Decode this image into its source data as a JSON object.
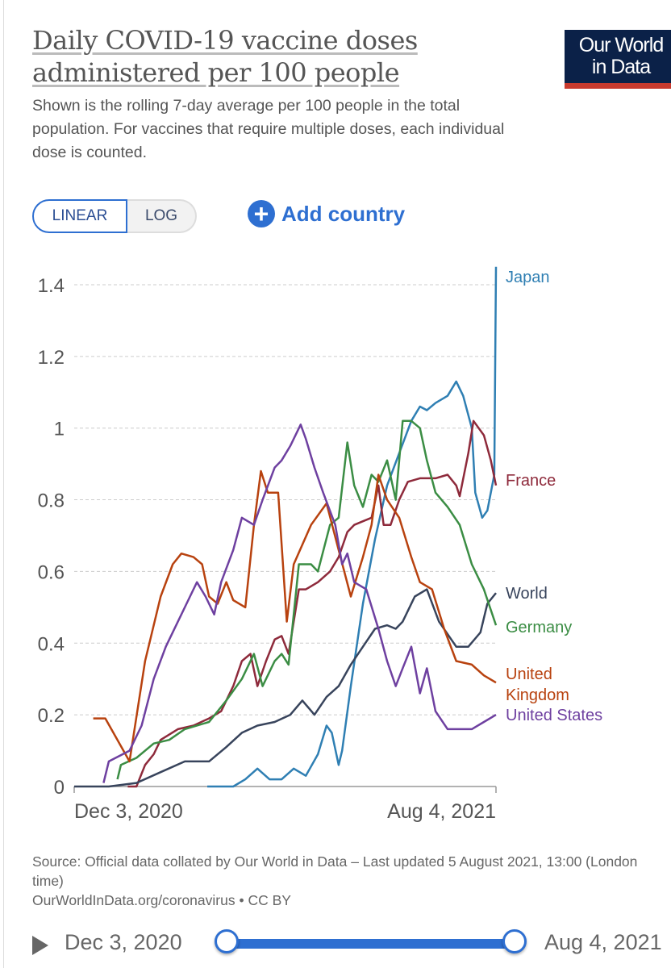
{
  "header": {
    "title": "Daily COVID-19 vaccine doses administered per 100 people",
    "subtitle": "Shown is the rolling 7-day average per 100 people in the total population. For vaccines that require multiple doses, each individual dose is counted.",
    "logo_line1": "Our World",
    "logo_line2": "in Data"
  },
  "controls": {
    "linear_label": "LINEAR",
    "log_label": "LOG",
    "add_country_label": "Add country",
    "add_icon": "plus-circle-icon"
  },
  "chart_data": {
    "type": "line",
    "title": "Daily COVID-19 vaccine doses administered per 100 people",
    "xlabel": "",
    "ylabel": "",
    "x_unit": "days since Dec 3, 2020",
    "xlim": [
      0,
      244
    ],
    "ylim": [
      0,
      1.45
    ],
    "y_ticks": [
      0,
      0.2,
      0.4,
      0.6,
      0.8,
      1,
      1.2,
      1.4
    ],
    "y_tick_labels": [
      "0",
      "0.2",
      "0.4",
      "0.6",
      "0.8",
      "1",
      "1.2",
      "1.4"
    ],
    "x_tick_labels": [
      "Dec 3, 2020",
      "Aug 4, 2021"
    ],
    "grid": true,
    "legend": "right (inline labels)",
    "series": [
      {
        "name": "Japan",
        "label": "Japan",
        "color": "#2f7fb3",
        "points": [
          [
            77,
            0
          ],
          [
            92,
            0
          ],
          [
            99,
            0.02
          ],
          [
            106,
            0.05
          ],
          [
            113,
            0.02
          ],
          [
            120,
            0.02
          ],
          [
            127,
            0.05
          ],
          [
            134,
            0.03
          ],
          [
            141,
            0.09
          ],
          [
            146,
            0.17
          ],
          [
            149,
            0.15
          ],
          [
            153,
            0.06
          ],
          [
            155,
            0.1
          ],
          [
            160,
            0.28
          ],
          [
            167,
            0.51
          ],
          [
            174,
            0.69
          ],
          [
            181,
            0.84
          ],
          [
            188,
            0.93
          ],
          [
            195,
            1.02
          ],
          [
            200,
            1.06
          ],
          [
            204,
            1.05
          ],
          [
            209,
            1.07
          ],
          [
            216,
            1.09
          ],
          [
            221,
            1.13
          ],
          [
            225,
            1.09
          ],
          [
            230,
            1.0
          ],
          [
            232,
            0.82
          ],
          [
            236,
            0.75
          ],
          [
            239,
            0.77
          ],
          [
            243,
            0.87
          ],
          [
            244,
            1.45
          ]
        ]
      },
      {
        "name": "France",
        "label": "France",
        "color": "#8e2a3b",
        "points": [
          [
            31,
            0
          ],
          [
            36,
            0
          ],
          [
            41,
            0.06
          ],
          [
            46,
            0.09
          ],
          [
            50,
            0.13
          ],
          [
            60,
            0.16
          ],
          [
            69,
            0.17
          ],
          [
            78,
            0.19
          ],
          [
            85,
            0.21
          ],
          [
            92,
            0.28
          ],
          [
            97,
            0.35
          ],
          [
            102,
            0.37
          ],
          [
            106,
            0.28
          ],
          [
            111,
            0.35
          ],
          [
            116,
            0.41
          ],
          [
            120,
            0.42
          ],
          [
            124,
            0.37
          ],
          [
            130,
            0.55
          ],
          [
            134,
            0.55
          ],
          [
            141,
            0.57
          ],
          [
            148,
            0.6
          ],
          [
            153,
            0.64
          ],
          [
            158,
            0.71
          ],
          [
            162,
            0.73
          ],
          [
            167,
            0.74
          ],
          [
            172,
            0.75
          ],
          [
            176,
            0.84
          ],
          [
            179,
            0.73
          ],
          [
            183,
            0.73
          ],
          [
            188,
            0.8
          ],
          [
            193,
            0.85
          ],
          [
            200,
            0.86
          ],
          [
            209,
            0.86
          ],
          [
            216,
            0.87
          ],
          [
            221,
            0.84
          ],
          [
            223,
            0.81
          ],
          [
            228,
            0.93
          ],
          [
            231,
            1.02
          ],
          [
            237,
            0.98
          ],
          [
            241,
            0.91
          ],
          [
            244,
            0.84
          ]
        ]
      },
      {
        "name": "World",
        "label": "World",
        "color": "#38445c",
        "points": [
          [
            0,
            0
          ],
          [
            20,
            0
          ],
          [
            36,
            0.01
          ],
          [
            50,
            0.04
          ],
          [
            64,
            0.07
          ],
          [
            78,
            0.07
          ],
          [
            88,
            0.11
          ],
          [
            97,
            0.15
          ],
          [
            106,
            0.17
          ],
          [
            116,
            0.18
          ],
          [
            125,
            0.2
          ],
          [
            132,
            0.24
          ],
          [
            139,
            0.2
          ],
          [
            146,
            0.25
          ],
          [
            153,
            0.28
          ],
          [
            160,
            0.34
          ],
          [
            167,
            0.39
          ],
          [
            174,
            0.44
          ],
          [
            181,
            0.45
          ],
          [
            186,
            0.44
          ],
          [
            190,
            0.46
          ],
          [
            197,
            0.53
          ],
          [
            204,
            0.55
          ],
          [
            211,
            0.46
          ],
          [
            221,
            0.39
          ],
          [
            228,
            0.39
          ],
          [
            235,
            0.43
          ],
          [
            239,
            0.51
          ],
          [
            244,
            0.54
          ]
        ]
      },
      {
        "name": "Germany",
        "label": "Germany",
        "color": "#3b8d44",
        "points": [
          [
            25,
            0.02
          ],
          [
            27,
            0.06
          ],
          [
            36,
            0.08
          ],
          [
            46,
            0.12
          ],
          [
            55,
            0.13
          ],
          [
            64,
            0.16
          ],
          [
            78,
            0.18
          ],
          [
            88,
            0.24
          ],
          [
            97,
            0.3
          ],
          [
            104,
            0.37
          ],
          [
            109,
            0.28
          ],
          [
            116,
            0.35
          ],
          [
            120,
            0.37
          ],
          [
            124,
            0.34
          ],
          [
            130,
            0.62
          ],
          [
            137,
            0.62
          ],
          [
            141,
            0.6
          ],
          [
            148,
            0.73
          ],
          [
            153,
            0.75
          ],
          [
            158,
            0.96
          ],
          [
            162,
            0.84
          ],
          [
            167,
            0.78
          ],
          [
            172,
            0.87
          ],
          [
            176,
            0.85
          ],
          [
            181,
            0.91
          ],
          [
            186,
            0.8
          ],
          [
            190,
            1.02
          ],
          [
            195,
            1.02
          ],
          [
            200,
            1.0
          ],
          [
            204,
            0.91
          ],
          [
            209,
            0.82
          ],
          [
            216,
            0.78
          ],
          [
            223,
            0.73
          ],
          [
            230,
            0.62
          ],
          [
            237,
            0.55
          ],
          [
            244,
            0.45
          ]
        ]
      },
      {
        "name": "United Kingdom",
        "label": "United Kingdom",
        "color": "#b8420f",
        "points": [
          [
            11,
            0.19
          ],
          [
            18,
            0.19
          ],
          [
            32,
            0.07
          ],
          [
            41,
            0.35
          ],
          [
            50,
            0.53
          ],
          [
            57,
            0.62
          ],
          [
            62,
            0.65
          ],
          [
            69,
            0.64
          ],
          [
            74,
            0.62
          ],
          [
            78,
            0.53
          ],
          [
            83,
            0.51
          ],
          [
            88,
            0.57
          ],
          [
            92,
            0.52
          ],
          [
            99,
            0.5
          ],
          [
            104,
            0.73
          ],
          [
            108,
            0.88
          ],
          [
            112,
            0.82
          ],
          [
            118,
            0.82
          ],
          [
            123,
            0.46
          ],
          [
            127,
            0.62
          ],
          [
            137,
            0.73
          ],
          [
            146,
            0.79
          ],
          [
            153,
            0.66
          ],
          [
            160,
            0.53
          ],
          [
            167,
            0.64
          ],
          [
            172,
            0.73
          ],
          [
            176,
            0.87
          ],
          [
            181,
            0.8
          ],
          [
            188,
            0.75
          ],
          [
            195,
            0.64
          ],
          [
            200,
            0.57
          ],
          [
            207,
            0.55
          ],
          [
            214,
            0.44
          ],
          [
            221,
            0.35
          ],
          [
            230,
            0.34
          ],
          [
            237,
            0.31
          ],
          [
            244,
            0.29
          ]
        ]
      },
      {
        "name": "United States",
        "label": "United States",
        "color": "#6e40a0",
        "points": [
          [
            17,
            0.01
          ],
          [
            20,
            0.07
          ],
          [
            32,
            0.1
          ],
          [
            39,
            0.17
          ],
          [
            46,
            0.3
          ],
          [
            53,
            0.39
          ],
          [
            60,
            0.46
          ],
          [
            67,
            0.53
          ],
          [
            71,
            0.57
          ],
          [
            76,
            0.53
          ],
          [
            81,
            0.48
          ],
          [
            85,
            0.57
          ],
          [
            92,
            0.66
          ],
          [
            97,
            0.75
          ],
          [
            104,
            0.73
          ],
          [
            109,
            0.8
          ],
          [
            116,
            0.89
          ],
          [
            120,
            0.91
          ],
          [
            125,
            0.95
          ],
          [
            131,
            1.01
          ],
          [
            134,
            0.97
          ],
          [
            139,
            0.89
          ],
          [
            144,
            0.82
          ],
          [
            151,
            0.73
          ],
          [
            155,
            0.62
          ],
          [
            158,
            0.65
          ],
          [
            162,
            0.57
          ],
          [
            169,
            0.55
          ],
          [
            176,
            0.44
          ],
          [
            181,
            0.35
          ],
          [
            186,
            0.28
          ],
          [
            190,
            0.33
          ],
          [
            195,
            0.39
          ],
          [
            200,
            0.26
          ],
          [
            204,
            0.33
          ],
          [
            209,
            0.21
          ],
          [
            216,
            0.16
          ],
          [
            223,
            0.16
          ],
          [
            230,
            0.16
          ],
          [
            237,
            0.18
          ],
          [
            244,
            0.2
          ]
        ]
      }
    ]
  },
  "footer": {
    "source_line1": "Source: Official data collated by Our World in Data – Last updated 5 August 2021, 13:00 (London time)",
    "source_line2": "OurWorldInData.org/coronavirus • CC BY"
  },
  "timeline": {
    "start_label": "Dec 3, 2020",
    "end_label": "Aug 4, 2021",
    "start_fraction": 0,
    "end_fraction": 1
  }
}
